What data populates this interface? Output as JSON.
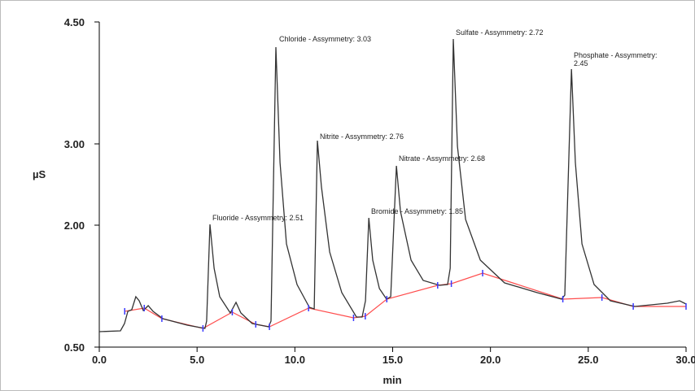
{
  "chart_data": {
    "type": "line",
    "xlabel": "min",
    "ylabel": "µS",
    "xlim": [
      0,
      30
    ],
    "ylim": [
      0.5,
      4.5
    ],
    "xticks": [
      {
        "value": 0,
        "label": "0.0"
      },
      {
        "value": 5,
        "label": "5.0"
      },
      {
        "value": 10,
        "label": "10.0"
      },
      {
        "value": 15,
        "label": "15.0"
      },
      {
        "value": 20,
        "label": "20.0"
      },
      {
        "value": 25,
        "label": "25.0"
      },
      {
        "value": 30,
        "label": "30.0"
      }
    ],
    "yticks": [
      {
        "value": 0.5,
        "label": "0.50"
      },
      {
        "value": 2,
        "label": "2.00"
      },
      {
        "value": 3,
        "label": "3.00"
      },
      {
        "value": 4.5,
        "label": "4.50"
      }
    ],
    "trace": {
      "color": "#333333",
      "x": [
        0,
        1.08,
        1.29,
        1.46,
        1.66,
        1.87,
        2.04,
        2.25,
        2.5,
        2.75,
        3.25,
        4.5,
        5.4,
        5.49,
        5.66,
        5.87,
        6.16,
        6.7,
        6.99,
        7.24,
        7.82,
        8.66,
        8.78,
        9.03,
        9.24,
        9.57,
        10.11,
        10.74,
        10.99,
        11.15,
        11.36,
        11.78,
        12.4,
        13.15,
        13.44,
        13.61,
        13.78,
        13.98,
        14.32,
        14.69,
        14.9,
        15.19,
        15.4,
        15.94,
        16.56,
        17.4,
        17.81,
        17.94,
        18.1,
        18.31,
        18.73,
        19.48,
        20.72,
        22.39,
        23.64,
        23.8,
        24.14,
        24.34,
        24.68,
        25.3,
        26.13,
        27.38,
        29.04,
        29.67,
        30
      ],
      "y": [
        0.69,
        0.7,
        0.79,
        0.94,
        0.96,
        1.12,
        1.07,
        0.95,
        1.01,
        0.94,
        0.85,
        0.77,
        0.73,
        0.82,
        2.01,
        1.47,
        1.12,
        0.92,
        1.05,
        0.92,
        0.79,
        0.75,
        0.82,
        4.19,
        2.77,
        1.77,
        1.27,
        0.99,
        0.97,
        3.04,
        2.47,
        1.67,
        1.17,
        0.87,
        0.87,
        1.07,
        2.09,
        1.57,
        1.22,
        1.09,
        1.12,
        2.73,
        2.17,
        1.57,
        1.32,
        1.26,
        1.27,
        1.47,
        4.29,
        2.97,
        2.07,
        1.57,
        1.29,
        1.17,
        1.09,
        1.14,
        3.92,
        2.77,
        1.77,
        1.27,
        1.07,
        1.0,
        1.04,
        1.07,
        1.03
      ]
    },
    "baseline": {
      "color": "#ff4d4d",
      "marker_color": "#3a3aff",
      "x": [
        1.3,
        2.3,
        3.2,
        5.3,
        6.8,
        8.0,
        8.7,
        10.7,
        13.0,
        13.6,
        14.7,
        17.3,
        18.0,
        19.6,
        23.7,
        25.7,
        27.3,
        30
      ],
      "y": [
        0.94,
        0.98,
        0.85,
        0.73,
        0.93,
        0.78,
        0.75,
        0.98,
        0.86,
        0.88,
        1.09,
        1.26,
        1.28,
        1.41,
        1.09,
        1.11,
        1.0,
        1.0
      ]
    },
    "annotations": [
      "Fluoride - Assymmetry: 2.51",
      "Chloride - Assymmetry: 3.03",
      "Nitrite - Assymmetry: 2.76",
      "Bromide - Assymmetry: 1.85",
      "Nitrate - Assymmetry: 2.68",
      "Sulfate - Assymmetry: 2.72",
      [
        "Phosphate - Assymmetry:",
        "2.45"
      ]
    ]
  }
}
